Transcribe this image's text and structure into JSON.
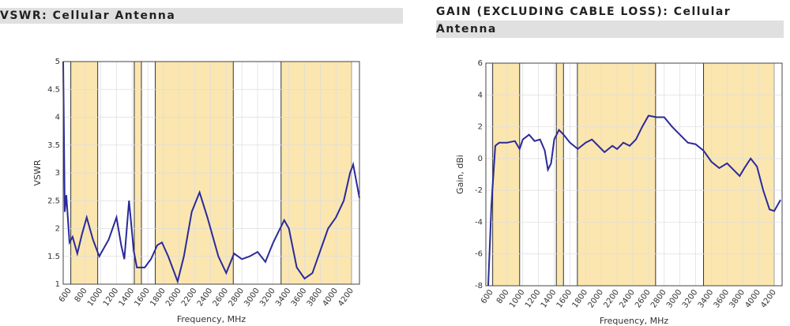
{
  "chart_data": [
    {
      "type": "line",
      "title": "VSWR: Cellular Antenna",
      "xlabel": "Frequency, MHz",
      "ylabel": "VSWR",
      "xlim": [
        520,
        4300
      ],
      "ylim": [
        1,
        5
      ],
      "xticks": [
        600,
        800,
        1000,
        1200,
        1400,
        1600,
        1800,
        2000,
        2200,
        2400,
        2600,
        2800,
        3000,
        3200,
        3400,
        3600,
        3800,
        4000,
        4200
      ],
      "yticks": [
        1,
        1.5,
        2,
        2.5,
        3,
        3.5,
        4,
        4.5,
        5
      ],
      "grid": true,
      "bands": [
        [
          617,
          960
        ],
        [
          1427,
          1518
        ],
        [
          1695,
          2690
        ],
        [
          3300,
          4200
        ]
      ],
      "band_color": "#fbe6b0",
      "series": [
        {
          "color": "#2a2a9a",
          "x": [
            520,
            540,
            560,
            600,
            640,
            700,
            760,
            820,
            900,
            980,
            1100,
            1200,
            1260,
            1300,
            1360,
            1420,
            1460,
            1560,
            1640,
            1720,
            1780,
            1860,
            1980,
            2060,
            2160,
            2260,
            2360,
            2500,
            2600,
            2700,
            2800,
            2900,
            3000,
            3100,
            3200,
            3340,
            3400,
            3500,
            3600,
            3700,
            3800,
            3900,
            4000,
            4100,
            4180,
            4220,
            4300
          ],
          "values": [
            5,
            2.3,
            2.6,
            1.75,
            1.85,
            1.55,
            1.9,
            2.2,
            1.8,
            1.5,
            1.8,
            2.2,
            1.7,
            1.45,
            2.5,
            1.6,
            1.3,
            1.3,
            1.45,
            1.7,
            1.75,
            1.5,
            1.05,
            1.5,
            2.3,
            2.65,
            2.2,
            1.5,
            1.2,
            1.55,
            1.45,
            1.5,
            1.58,
            1.4,
            1.75,
            2.15,
            2.0,
            1.3,
            1.1,
            1.2,
            1.6,
            2.0,
            2.2,
            2.5,
            3.0,
            3.15,
            2.55
          ]
        }
      ]
    },
    {
      "type": "line",
      "title": "GAIN (EXCLUDING CABLE LOSS): Cellular Antenna",
      "xlabel": "Frequency, MHz",
      "ylabel": "Gain, dBi",
      "xlim": [
        530,
        4300
      ],
      "ylim": [
        -8,
        6
      ],
      "xticks": [
        600,
        800,
        1000,
        1200,
        1400,
        1600,
        1800,
        2000,
        2200,
        2400,
        2600,
        2800,
        3000,
        3200,
        3400,
        3600,
        3800,
        4000,
        4200
      ],
      "yticks": [
        -8,
        -6,
        -4,
        -2,
        0,
        2,
        4,
        6
      ],
      "grid": true,
      "bands": [
        [
          617,
          960
        ],
        [
          1427,
          1518
        ],
        [
          1695,
          2690
        ],
        [
          3300,
          4200
        ]
      ],
      "band_color": "#fbe6b0",
      "series": [
        {
          "color": "#2a2a9a",
          "x": [
            560,
            600,
            650,
            700,
            800,
            900,
            960,
            1000,
            1080,
            1150,
            1220,
            1280,
            1320,
            1360,
            1400,
            1460,
            1520,
            1600,
            1700,
            1800,
            1880,
            1960,
            2040,
            2140,
            2200,
            2280,
            2360,
            2440,
            2520,
            2600,
            2700,
            2800,
            2900,
            3000,
            3100,
            3200,
            3300,
            3400,
            3500,
            3600,
            3700,
            3760,
            3820,
            3900,
            3980,
            4060,
            4140,
            4200,
            4280
          ],
          "values": [
            -8,
            -3,
            0.8,
            1.0,
            1.0,
            1.1,
            0.6,
            1.2,
            1.5,
            1.1,
            1.2,
            0.5,
            -0.7,
            -0.3,
            1.2,
            1.8,
            1.5,
            1.0,
            0.6,
            1.0,
            1.2,
            0.8,
            0.4,
            0.8,
            0.6,
            1.0,
            0.8,
            1.2,
            2.0,
            2.7,
            2.6,
            2.6,
            2.0,
            1.5,
            1.0,
            0.9,
            0.5,
            -0.2,
            -0.6,
            -0.3,
            -0.8,
            -1.1,
            -0.6,
            0.0,
            -0.5,
            -2.0,
            -3.2,
            -3.3,
            -2.6
          ]
        }
      ]
    }
  ]
}
